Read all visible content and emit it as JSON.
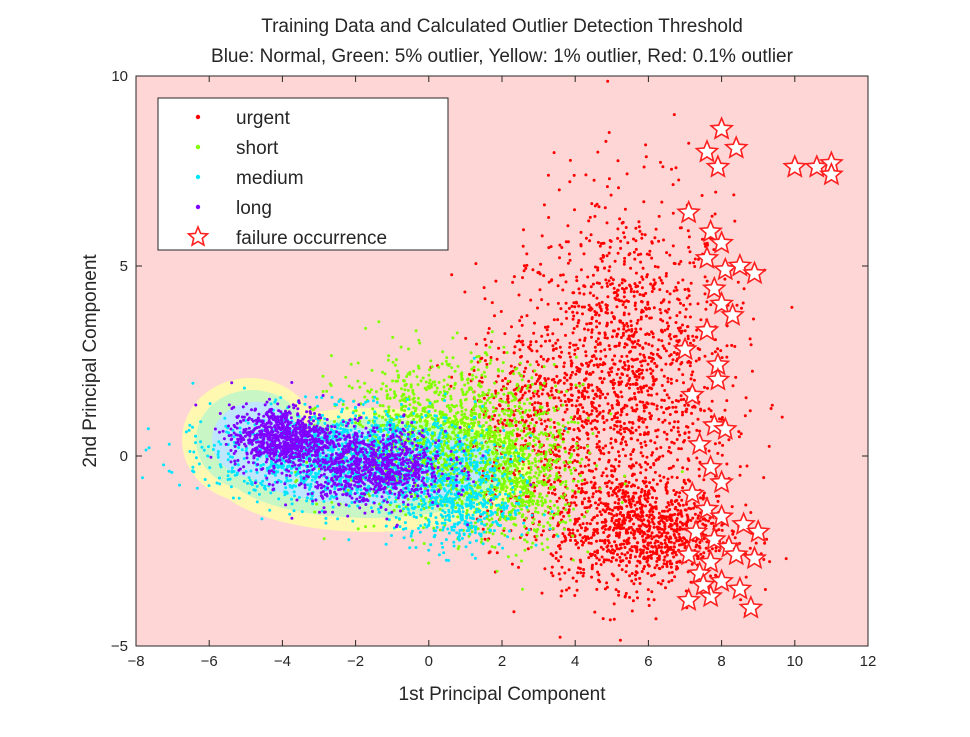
{
  "chart_data": {
    "type": "scatter",
    "title": "Training Data and Calculated Outlier Detection Threshold",
    "subtitle": "Blue: Normal, Green: 5% outlier, Yellow: 1% outlier, Red: 0.1% outlier",
    "xlabel": "1st Principal Component",
    "ylabel": "2nd Principal Component",
    "xlim": [
      -8,
      12
    ],
    "ylim": [
      -5,
      10
    ],
    "xticks": [
      "−8",
      "−6",
      "−4",
      "−2",
      "0",
      "2",
      "4",
      "6",
      "8",
      "10",
      "12"
    ],
    "yticks": [
      "−5",
      "0",
      "5",
      "10"
    ],
    "grid": false,
    "legend_position": "top-left",
    "background_color": "#ffd6d6",
    "threshold_regions": [
      {
        "level": "1% outlier",
        "color": "#fff8b0"
      },
      {
        "level": "5% outlier",
        "color": "#c8f7c5"
      },
      {
        "level": "normal",
        "color": "#bfe6ff"
      }
    ],
    "series": [
      {
        "name": "urgent",
        "color": "#ff0000",
        "marker": "dot",
        "clusters": [
          {
            "cx": 5.5,
            "cy": 2.0,
            "sx": 1.4,
            "sy": 2.4,
            "n": 1500
          },
          {
            "cx": 5.8,
            "cy": -2.0,
            "sx": 1.2,
            "sy": 0.7,
            "n": 900
          },
          {
            "cx": 3.0,
            "cy": 1.0,
            "sx": 1.0,
            "sy": 1.5,
            "n": 500
          }
        ]
      },
      {
        "name": "short",
        "color": "#80ff00",
        "marker": "dot",
        "clusters": [
          {
            "cx": 0.5,
            "cy": 0.5,
            "sx": 1.5,
            "sy": 1.0,
            "n": 1500
          },
          {
            "cx": 2.5,
            "cy": -0.8,
            "sx": 0.8,
            "sy": 0.8,
            "n": 500
          }
        ]
      },
      {
        "name": "medium",
        "color": "#00e5ff",
        "marker": "dot",
        "clusters": [
          {
            "cx": -2.2,
            "cy": 0.0,
            "sx": 1.8,
            "sy": 0.6,
            "n": 1500
          },
          {
            "cx": 0.8,
            "cy": -1.3,
            "sx": 0.9,
            "sy": 0.6,
            "n": 500
          }
        ]
      },
      {
        "name": "long",
        "color": "#7f00ff",
        "marker": "dot",
        "clusters": [
          {
            "cx": -4.0,
            "cy": 0.5,
            "sx": 0.7,
            "sy": 0.4,
            "n": 800
          },
          {
            "cx": -1.5,
            "cy": -0.3,
            "sx": 1.0,
            "sy": 0.5,
            "n": 900
          }
        ]
      },
      {
        "name": "failure occurrence",
        "color": "#ff2020",
        "marker": "star",
        "points": [
          [
            8.0,
            8.6
          ],
          [
            7.6,
            8.0
          ],
          [
            8.4,
            8.1
          ],
          [
            7.9,
            7.6
          ],
          [
            10.0,
            7.6
          ],
          [
            10.6,
            7.6
          ],
          [
            11.0,
            7.7
          ],
          [
            11.0,
            7.4
          ],
          [
            7.1,
            6.4
          ],
          [
            7.7,
            5.9
          ],
          [
            8.0,
            5.6
          ],
          [
            7.6,
            5.2
          ],
          [
            8.1,
            4.9
          ],
          [
            8.5,
            5.0
          ],
          [
            8.9,
            4.8
          ],
          [
            7.8,
            4.4
          ],
          [
            8.0,
            4.0
          ],
          [
            8.3,
            3.7
          ],
          [
            7.6,
            3.3
          ],
          [
            7.0,
            2.8
          ],
          [
            7.9,
            2.4
          ],
          [
            7.9,
            2.0
          ],
          [
            7.2,
            1.6
          ],
          [
            7.8,
            0.8
          ],
          [
            8.1,
            0.7
          ],
          [
            7.4,
            0.3
          ],
          [
            7.7,
            -0.3
          ],
          [
            8.0,
            -0.7
          ],
          [
            7.2,
            -1.0
          ],
          [
            7.6,
            -1.4
          ],
          [
            8.0,
            -1.6
          ],
          [
            8.6,
            -1.8
          ],
          [
            7.3,
            -2.0
          ],
          [
            7.8,
            -2.2
          ],
          [
            8.2,
            -2.4
          ],
          [
            7.1,
            -2.6
          ],
          [
            7.7,
            -2.8
          ],
          [
            8.4,
            -2.6
          ],
          [
            8.9,
            -2.7
          ],
          [
            9.0,
            -2.0
          ],
          [
            7.4,
            -3.1
          ],
          [
            8.0,
            -3.3
          ],
          [
            8.5,
            -3.5
          ],
          [
            7.1,
            -3.8
          ],
          [
            7.7,
            -3.7
          ],
          [
            8.8,
            -4.0
          ],
          [
            7.5,
            -3.4
          ]
        ]
      }
    ]
  }
}
